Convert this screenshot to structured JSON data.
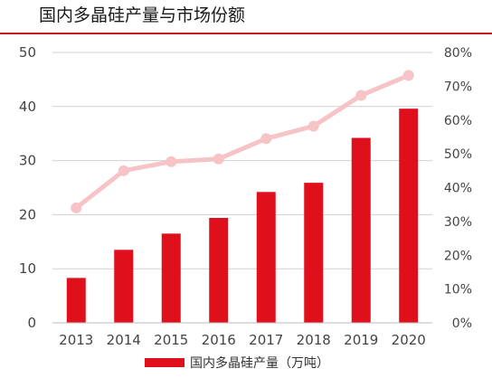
{
  "title": "国内多晶硅产量与市场份额",
  "chart_data": {
    "type": "bar",
    "categories": [
      "2013",
      "2014",
      "2015",
      "2016",
      "2017",
      "2018",
      "2019",
      "2020"
    ],
    "series": [
      {
        "name": "国内多晶硅产量（万吨）",
        "type": "bar",
        "axis": "left",
        "values": [
          8.3,
          13.5,
          16.5,
          19.4,
          24.2,
          25.9,
          34.2,
          39.6
        ]
      },
      {
        "name": "",
        "type": "line",
        "axis": "right",
        "values": [
          34,
          45,
          47.7,
          48.5,
          54.5,
          58.2,
          67.3,
          73.2
        ]
      }
    ],
    "ylim": [
      0,
      50
    ],
    "yticks": [
      "0",
      "10",
      "20",
      "30",
      "40",
      "50"
    ],
    "y2lim": [
      0,
      80
    ],
    "y2ticks": [
      "0%",
      "10%",
      "20%",
      "30%",
      "40%",
      "50%",
      "60%",
      "70%",
      "80%"
    ],
    "legend": {
      "label": "国内多晶硅产量（万吨）",
      "position": "bottom"
    },
    "colors": {
      "bar": "#e00f1c",
      "line": "#f6c4c6",
      "rule": "#c8161d",
      "grid": "#d0d0d0",
      "tick": "#444444"
    },
    "grid": true
  }
}
